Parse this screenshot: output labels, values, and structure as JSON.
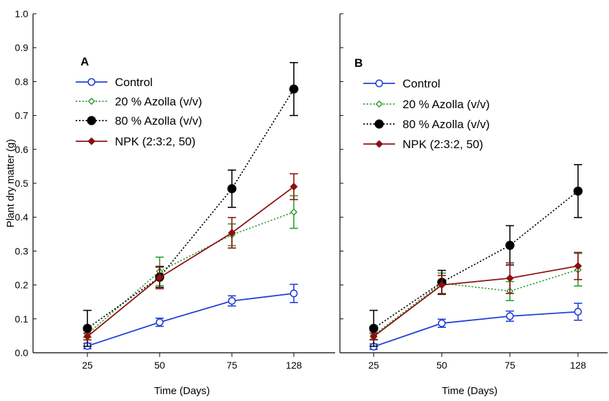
{
  "chart_data": {
    "type": "line",
    "ylabel": "Plant dry matter (g)",
    "ylim": [
      0.0,
      1.0
    ],
    "yticks": [
      "0.0",
      "0.1",
      "0.2",
      "0.3",
      "0.4",
      "0.5",
      "0.6",
      "0.7",
      "0.8",
      "0.9",
      "1.0"
    ],
    "grid": false,
    "legend_placement": "top-left",
    "series_styles": [
      {
        "name": "Control",
        "color": "#1f3fd8",
        "marker": "open-circle",
        "dash": "solid"
      },
      {
        "name": "20 % Azolla (v/v)",
        "color": "#2e9a2e",
        "marker": "open-diamond",
        "dash": "dotted"
      },
      {
        "name": "80 % Azolla (v/v)",
        "color": "#000000",
        "marker": "filled-circle",
        "dash": "dotted"
      },
      {
        "name": "NPK (2:3:2, 50)",
        "color": "#8b1010",
        "marker": "filled-diamond",
        "dash": "solid"
      }
    ],
    "panels": [
      {
        "label": "A",
        "xlabel": "Time (Days)",
        "categories": [
          "25",
          "50",
          "75",
          "128"
        ],
        "series": [
          {
            "name": "Control",
            "values": [
              0.02,
              0.09,
              0.153,
              0.175
            ],
            "errors": [
              0.008,
              0.012,
              0.015,
              0.027
            ]
          },
          {
            "name": "20 % Azolla (v/v)",
            "values": [
              0.055,
              0.24,
              0.348,
              0.415
            ],
            "errors": [
              0.01,
              0.042,
              0.032,
              0.048
            ]
          },
          {
            "name": "80 % Azolla (v/v)",
            "values": [
              0.072,
              0.223,
              0.484,
              0.778
            ],
            "errors": [
              0.053,
              0.03,
              0.055,
              0.078
            ]
          },
          {
            "name": "NPK (2:3:2, 50)",
            "values": [
              0.048,
              0.222,
              0.354,
              0.49
            ],
            "errors": [
              0.01,
              0.033,
              0.045,
              0.038
            ]
          }
        ]
      },
      {
        "label": "B",
        "xlabel": "Time (Days)",
        "categories": [
          "25",
          "50",
          "75",
          "128"
        ],
        "series": [
          {
            "name": "Control",
            "values": [
              0.018,
              0.087,
              0.108,
              0.121
            ],
            "errors": [
              0.008,
              0.012,
              0.015,
              0.025
            ]
          },
          {
            "name": "20 % Azolla (v/v)",
            "values": [
              0.052,
              0.205,
              0.182,
              0.245
            ],
            "errors": [
              0.012,
              0.03,
              0.028,
              0.048
            ]
          },
          {
            "name": "80 % Azolla (v/v)",
            "values": [
              0.072,
              0.208,
              0.317,
              0.477
            ],
            "errors": [
              0.053,
              0.035,
              0.058,
              0.078
            ]
          },
          {
            "name": "NPK (2:3:2, 50)",
            "values": [
              0.048,
              0.2,
              0.22,
              0.256
            ],
            "errors": [
              0.01,
              0.028,
              0.045,
              0.04
            ]
          }
        ]
      }
    ]
  }
}
